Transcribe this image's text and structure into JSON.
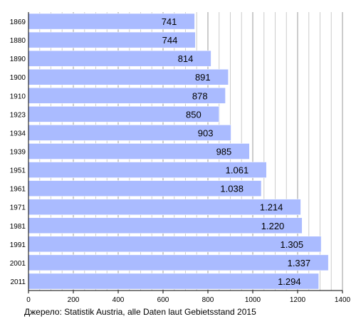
{
  "chart_data": {
    "type": "bar",
    "orientation": "horizontal",
    "categories": [
      "1869",
      "1880",
      "1890",
      "1900",
      "1910",
      "1923",
      "1934",
      "1939",
      "1951",
      "1961",
      "1971",
      "1981",
      "1991",
      "2001",
      "2011"
    ],
    "values": [
      741,
      744,
      814,
      891,
      878,
      850,
      903,
      985,
      1061,
      1038,
      1214,
      1220,
      1305,
      1337,
      1294
    ],
    "value_labels": [
      "741",
      "744",
      "814",
      "891",
      "878",
      "850",
      "903",
      "985",
      "1.061",
      "1.038",
      "1.214",
      "1.220",
      "1.305",
      "1.337",
      "1.294"
    ],
    "title": "",
    "xlabel": "",
    "ylabel": "",
    "xlim": [
      0,
      1400
    ],
    "x_ticks": [
      0,
      200,
      400,
      600,
      800,
      1000,
      1200,
      1400
    ],
    "x_tick_labels": [
      "0",
      "200",
      "400",
      "600",
      "800",
      "1000",
      "1200",
      "1400"
    ],
    "grid": true,
    "legend": "none",
    "colors": {
      "bar_fill": "#aabbff",
      "bar_stroke": "#ffffff",
      "grid_line": "#bbbbbb",
      "axis_line": "#000000",
      "text": "#000000"
    }
  },
  "source_note": "Джерело: Statistik Austria, alle Daten laut Gebietsstand 2015"
}
